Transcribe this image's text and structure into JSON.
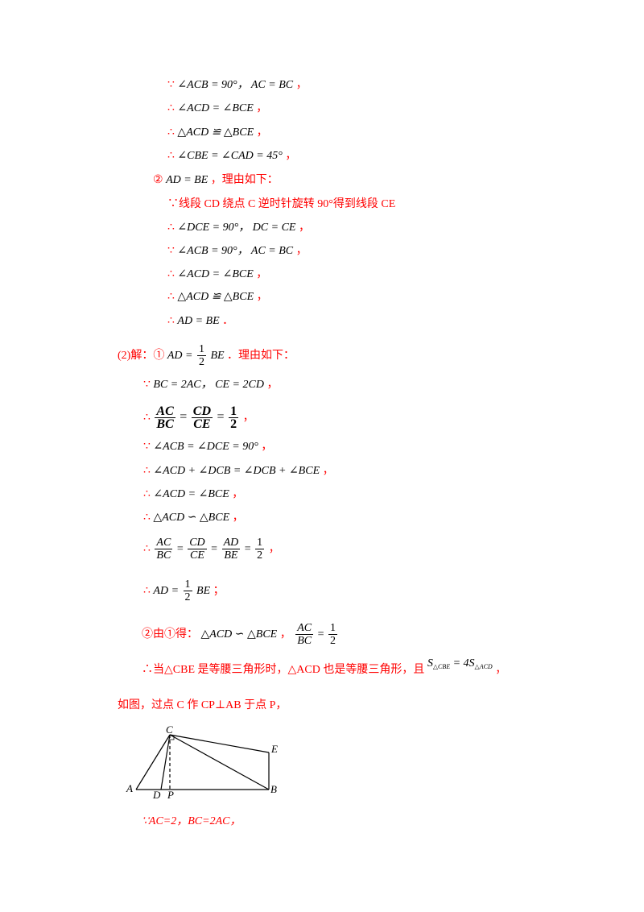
{
  "lines": {
    "l1_because": "∵",
    "l1_math": "∠ACB = 90°，  AC = BC",
    "l1_comma": "，",
    "l2_therefore": "∴",
    "l2_math": "∠ACD = ∠BCE",
    "l2_comma": "，",
    "l3_therefore": "∴",
    "l3_math": "△ACD ≌ △BCE",
    "l3_comma": "，",
    "l4_therefore": "∴",
    "l4_math": "∠CBE = ∠CAD = 45°",
    "l4_comma": "，",
    "l5_circle": "②",
    "l5_math": "AD = BE",
    "l5_text": "，理由如下：",
    "l6_text": "∵线段 CD 绕点 C 逆时针旋转 90°得到线段 CE",
    "l7_therefore": "∴",
    "l7_math": "∠DCE = 90°，  DC = CE",
    "l7_comma": "，",
    "l8_because": "∵",
    "l8_math": "∠ACB = 90°，  AC = BC",
    "l8_comma": "，",
    "l9_therefore": "∴",
    "l9_math": "∠ACD = ∠BCE",
    "l9_comma": "，",
    "l10_therefore": "∴",
    "l10_math": "△ACD ≌ △BCE",
    "l10_comma": "，",
    "l11_therefore": "∴",
    "l11_math": "AD = BE",
    "l11_end": "．",
    "l12_prefix": "(2)解：①",
    "l12_math_a": "AD =",
    "l12_frac_num": "1",
    "l12_frac_den": "2",
    "l12_math_b": "BE",
    "l12_text": "．理由如下：",
    "l13_because": "∵",
    "l13_math": "BC = 2AC，  CE = 2CD",
    "l13_comma": "，",
    "l14_therefore": "∴",
    "l14_f1_num": "AC",
    "l14_f1_den": "BC",
    "l14_eq1": "=",
    "l14_f2_num": "CD",
    "l14_f2_den": "CE",
    "l14_eq2": "=",
    "l14_f3_num": "1",
    "l14_f3_den": "2",
    "l14_comma": "，",
    "l15_because": "∵",
    "l15_math": "∠ACB = ∠DCE = 90°",
    "l15_comma": "，",
    "l16_therefore": "∴",
    "l16_math": "∠ACD + ∠DCB = ∠DCB + ∠BCE",
    "l16_comma": "，",
    "l17_therefore": "∴",
    "l17_math": "∠ACD = ∠BCE",
    "l17_comma": "，",
    "l18_therefore": "∴",
    "l18_math": "△ACD ∽ △BCE",
    "l18_comma": "，",
    "l19_therefore": "∴",
    "l19_f1_num": "AC",
    "l19_f1_den": "BC",
    "l19_f2_num": "CD",
    "l19_f2_den": "CE",
    "l19_f3_num": "AD",
    "l19_f3_den": "BE",
    "l19_f4_num": "1",
    "l19_f4_den": "2",
    "l19_eq": "=",
    "l19_comma": "，",
    "l20_therefore": "∴",
    "l20_math_a": "AD =",
    "l20_frac_num": "1",
    "l20_frac_den": "2",
    "l20_math_b": "BE",
    "l20_semi": "；",
    "l21_prefix": "②由①得：",
    "l21_math": "△ACD ∽ △BCE",
    "l21_comma": "，",
    "l21_frac_num": "AC",
    "l21_frac_den": "BC",
    "l21_eq": "=",
    "l21_f2_num": "1",
    "l21_f2_den": "2",
    "l22_text": "∴当△CBE 是等腰三角形时，△ACD 也是等腰三角形，且",
    "l22_S1": "S",
    "l22_S1_sub": "△CBE",
    "l22_eq": "= 4S",
    "l22_S2_sub": "△ACD",
    "l22_comma": "，",
    "l23_text": "如图，过点 C 作 CP⊥AB 于点 P，",
    "l24_text": "∵AC=2，BC=2AC，"
  },
  "figure": {
    "labels": {
      "A": "A",
      "B": "B",
      "C": "C",
      "D": "D",
      "E": "E",
      "P": "P"
    }
  }
}
